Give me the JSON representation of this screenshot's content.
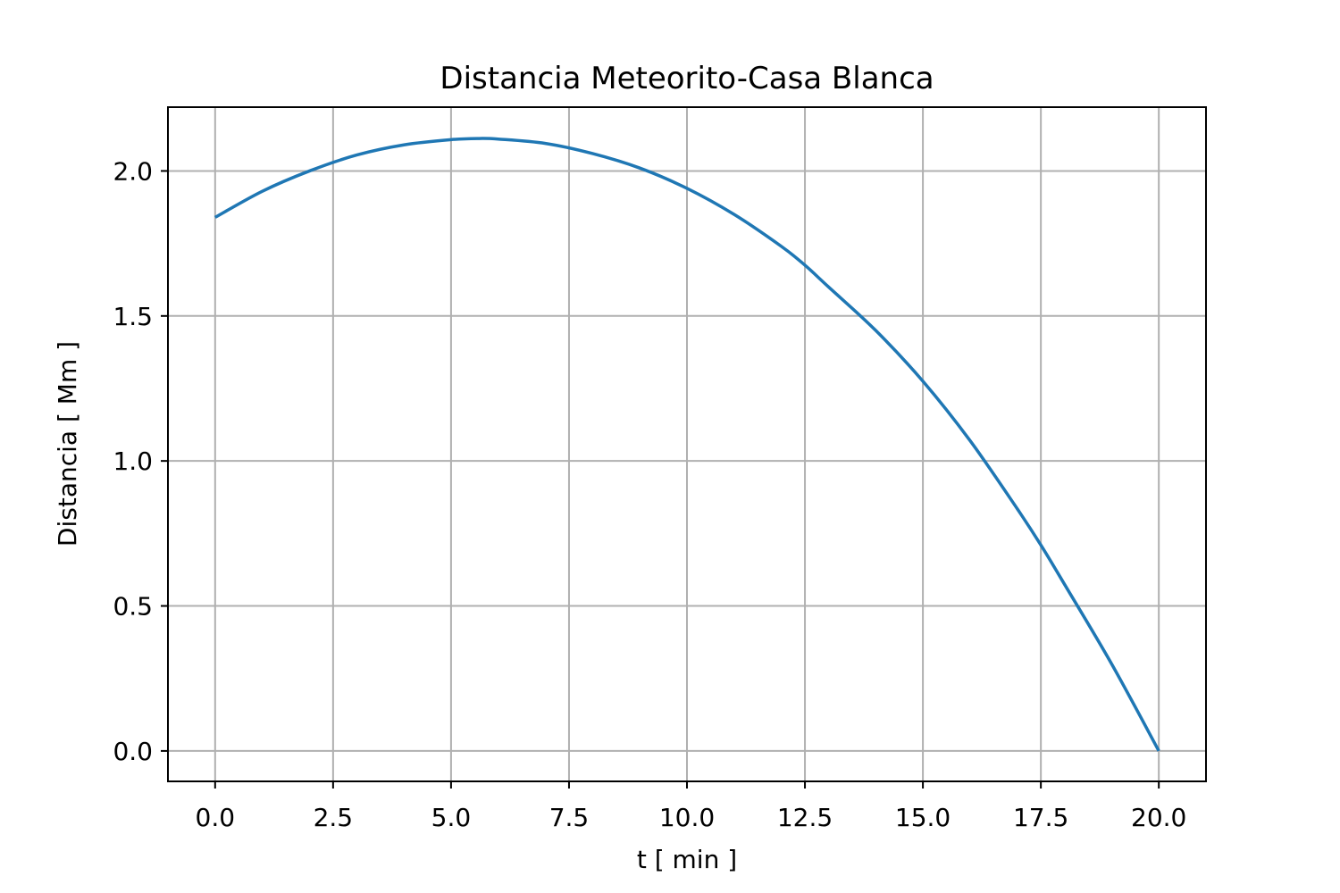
{
  "chart_data": {
    "type": "line",
    "title": "Distancia Meteorito-Casa Blanca",
    "xlabel": "t [ min ]",
    "ylabel": "Distancia [ Mm ]",
    "xlim": [
      -1.0,
      21.0
    ],
    "ylim": [
      -0.105,
      2.22
    ],
    "xticks": [
      0.0,
      2.5,
      5.0,
      7.5,
      10.0,
      12.5,
      15.0,
      17.5,
      20.0
    ],
    "xtick_labels": [
      "0.0",
      "2.5",
      "5.0",
      "7.5",
      "10.0",
      "12.5",
      "15.0",
      "17.5",
      "20.0"
    ],
    "yticks": [
      0.0,
      0.5,
      1.0,
      1.5,
      2.0
    ],
    "ytick_labels": [
      "0.0",
      "0.5",
      "1.0",
      "1.5",
      "2.0"
    ],
    "grid": true,
    "series": [
      {
        "color": "#1f77b4",
        "x": [
          0.0,
          1.0,
          2.0,
          3.0,
          4.0,
          5.0,
          5.6,
          6.0,
          7.0,
          8.0,
          9.0,
          10.0,
          11.0,
          12.0,
          12.5,
          13.0,
          14.0,
          15.0,
          16.0,
          17.0,
          17.5,
          18.0,
          19.0,
          20.0
        ],
        "y": [
          1.84,
          1.93,
          2.0,
          2.055,
          2.09,
          2.108,
          2.112,
          2.11,
          2.095,
          2.06,
          2.01,
          1.94,
          1.85,
          1.74,
          1.675,
          1.6,
          1.45,
          1.275,
          1.07,
          0.835,
          0.71,
          0.575,
          0.3,
          0.0
        ]
      }
    ]
  }
}
